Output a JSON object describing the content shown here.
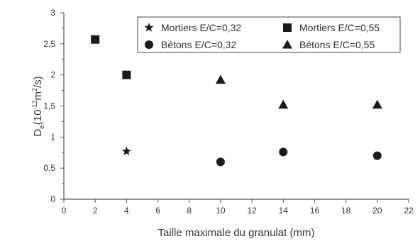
{
  "chart_data": {
    "type": "scatter",
    "xlabel": "Taille maximale du granulat (mm)",
    "ylabel_main": "D",
    "ylabel_sub": "e",
    "ylabel_open": "(10",
    "ylabel_exp": "-12",
    "ylabel_unit": "m",
    "ylabel_unit_exp": "2",
    "ylabel_close": "/s)",
    "xlim": [
      0,
      22
    ],
    "ylim": [
      0,
      3
    ],
    "x_ticks": [
      "0",
      "2",
      "4",
      "6",
      "8",
      "10",
      "12",
      "14",
      "16",
      "18",
      "20",
      "22"
    ],
    "y_ticks": [
      "0",
      "0,5",
      "1",
      "1,5",
      "2",
      "2,5",
      "3"
    ],
    "grid": false,
    "legend_position": "top-right",
    "series": [
      {
        "name": "Mortiers E/C=0,32",
        "marker": "star",
        "points": [
          {
            "x": 4,
            "y": 0.77
          }
        ]
      },
      {
        "name": "Mortiers E/C=0,55",
        "marker": "square",
        "points": [
          {
            "x": 2,
            "y": 2.57
          },
          {
            "x": 4,
            "y": 2.0
          }
        ]
      },
      {
        "name": "Bétons E/C=0,32",
        "marker": "circle",
        "points": [
          {
            "x": 10,
            "y": 0.6
          },
          {
            "x": 14,
            "y": 0.76
          },
          {
            "x": 20,
            "y": 0.7
          }
        ]
      },
      {
        "name": "Bétons E/C=0,55",
        "marker": "triangle",
        "points": [
          {
            "x": 10,
            "y": 1.92
          },
          {
            "x": 14,
            "y": 1.52
          },
          {
            "x": 20,
            "y": 1.52
          }
        ]
      }
    ]
  }
}
